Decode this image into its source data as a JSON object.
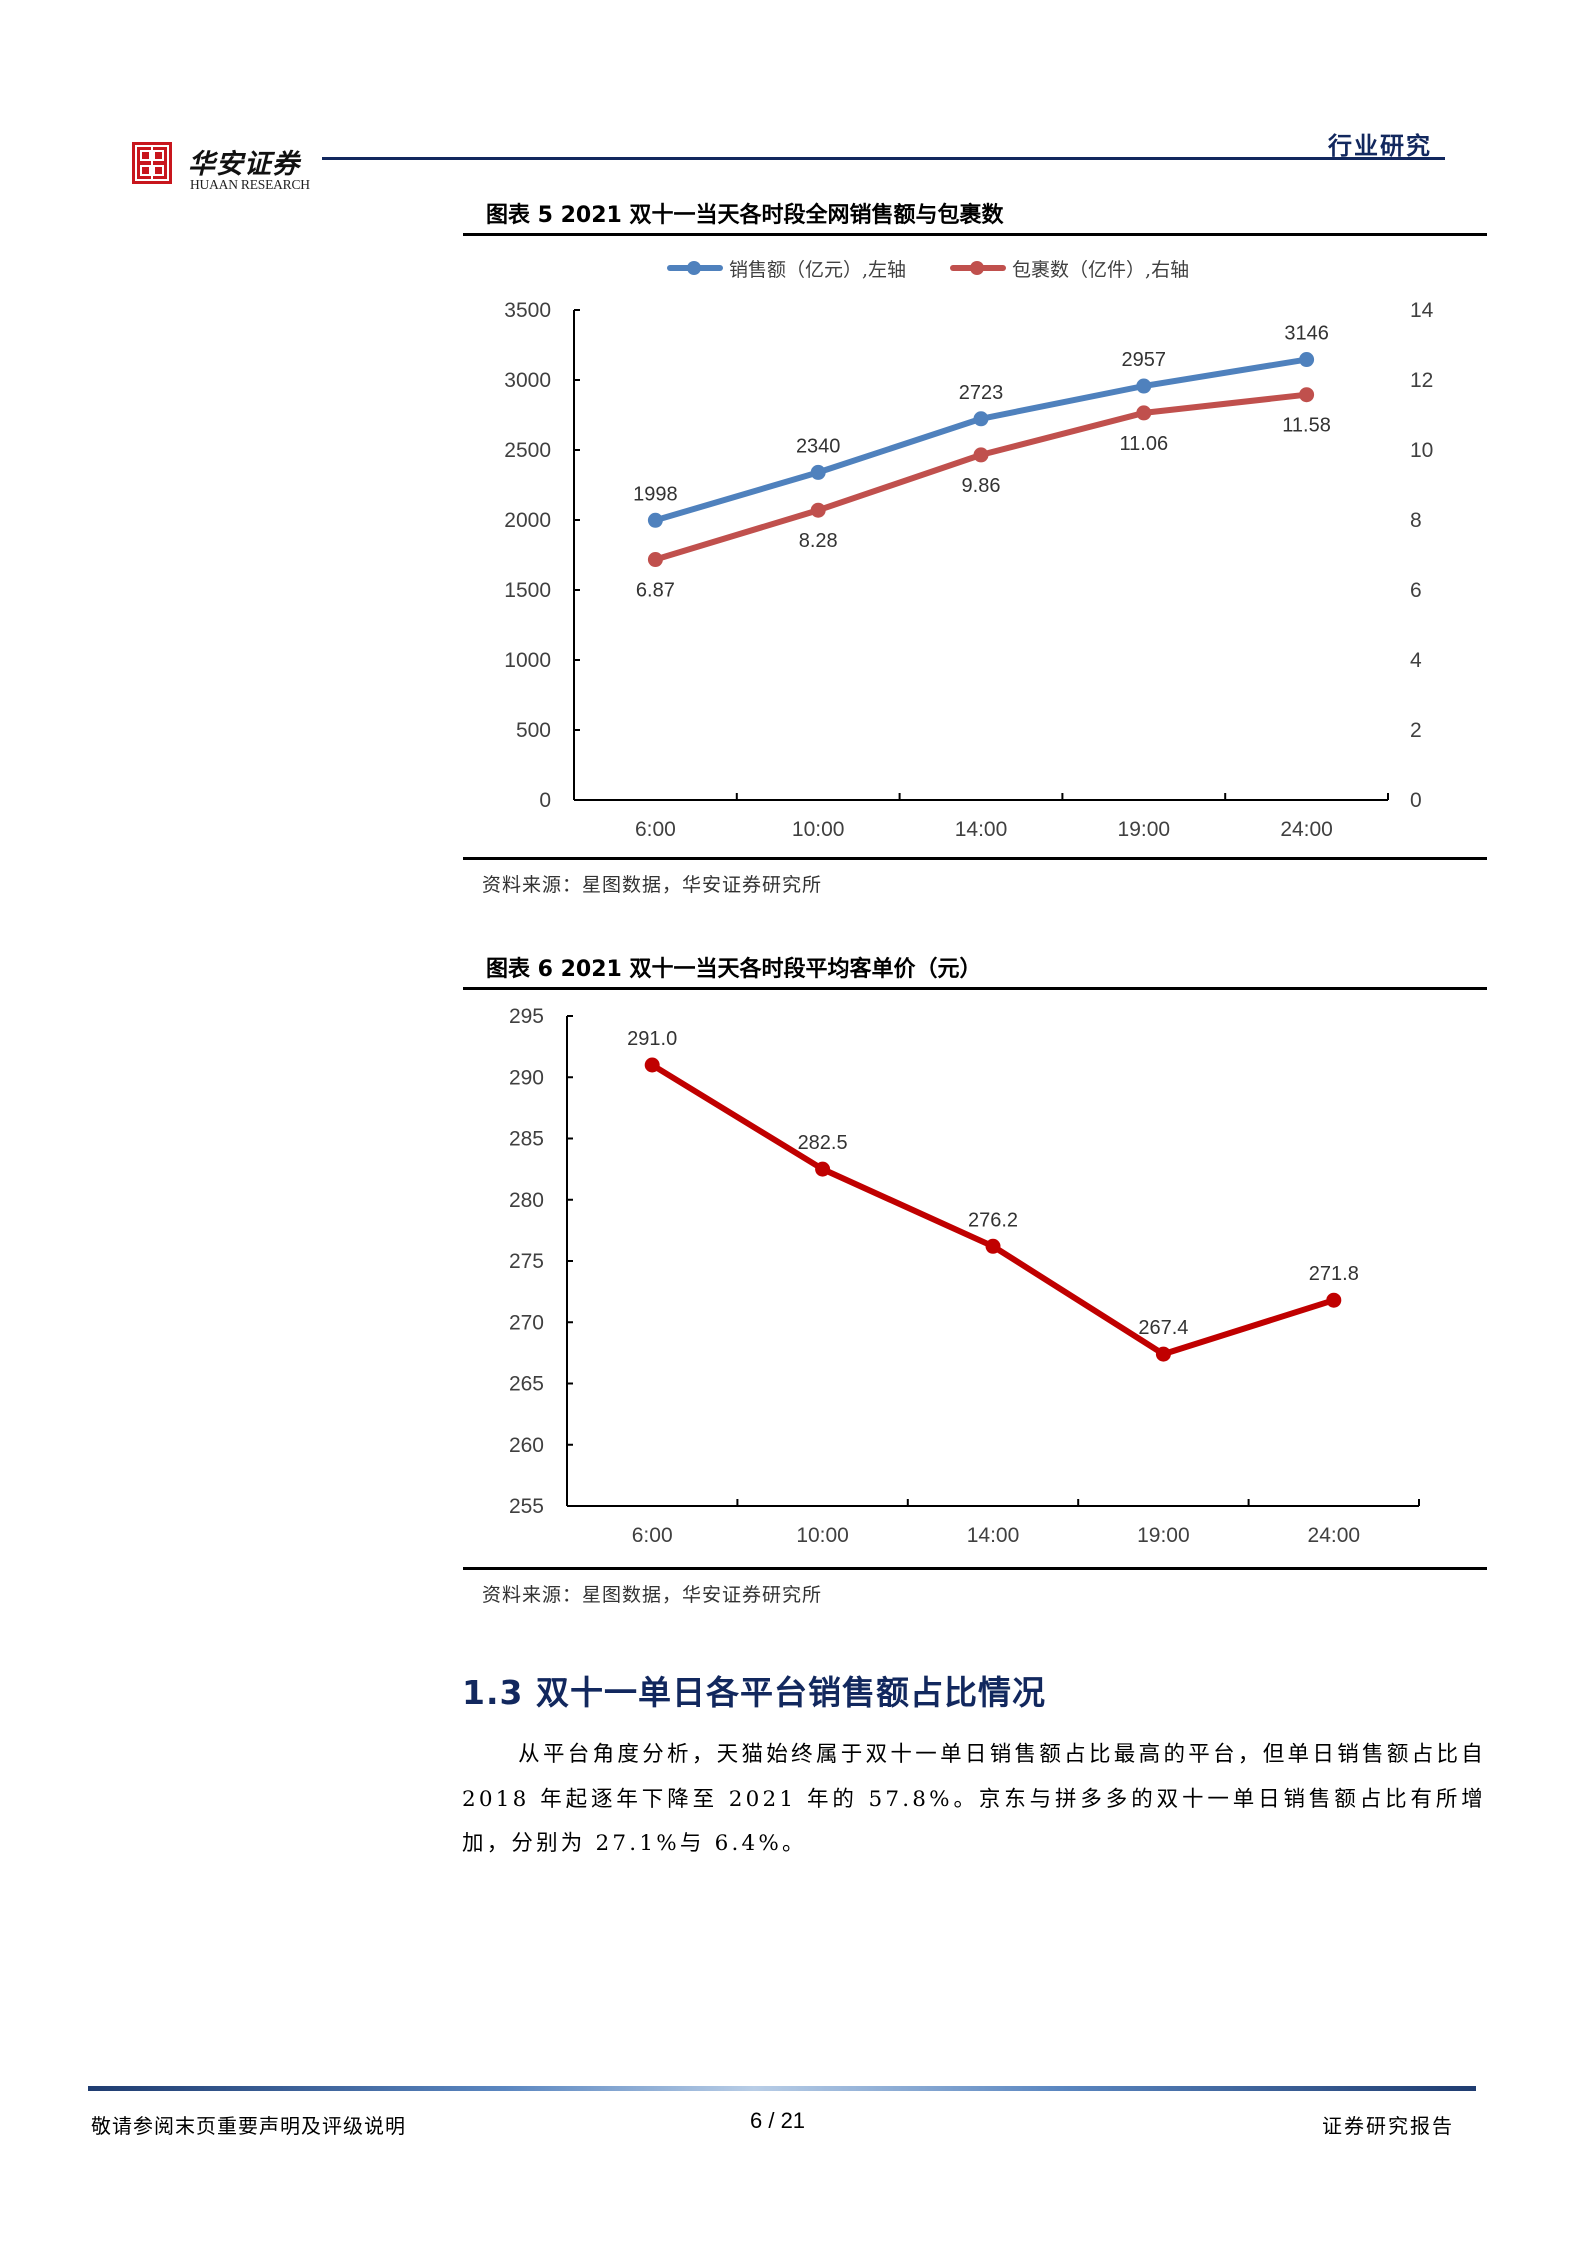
{
  "header": {
    "brand_cn": "华安证券",
    "brand_en": "HUAAN RESEARCH",
    "tag": "行业研究",
    "accent_color": "#12285e",
    "logo_color": "#c8161d"
  },
  "figure5": {
    "title": "图表 5 2021 双十一当天各时段全网销售额与包裹数",
    "source": "资料来源：星图数据，华安证券研究所"
  },
  "figure6": {
    "title": "图表 6 2021 双十一当天各时段平均客单价（元）",
    "source": "资料来源：星图数据，华安证券研究所"
  },
  "section": {
    "heading": "1.3 双十一单日各平台销售额占比情况",
    "paragraph": "从平台角度分析，天猫始终属于双十一单日销售额占比最高的平台，但单日销售额占比自 2018 年起逐年下降至 2021 年的 57.8%。京东与拼多多的双十一单日销售额占比有所增加，分别为 27.1%与 6.4%。"
  },
  "footer": {
    "disclaimer": "敬请参阅末页重要声明及评级说明",
    "page": "6 / 21",
    "doc_type": "证券研究报告"
  },
  "chart_data": [
    {
      "type": "line",
      "title": "图表 5 2021 双十一当天各时段全网销售额与包裹数",
      "categories": [
        "6:00",
        "10:00",
        "14:00",
        "19:00",
        "24:00"
      ],
      "series": [
        {
          "name": "销售额（亿元）,左轴",
          "axis": "left",
          "color": "#4f81bd",
          "values": [
            1998,
            2340,
            2723,
            2957,
            3146
          ],
          "labels": [
            "1998",
            "2340",
            "2723",
            "2957",
            "3146"
          ],
          "label_pos": "above"
        },
        {
          "name": "包裹数（亿件）,右轴",
          "axis": "right",
          "color": "#c0504d",
          "values": [
            6.87,
            8.28,
            9.86,
            11.06,
            11.58
          ],
          "labels": [
            "6.87",
            "8.28",
            "9.86",
            "11.06",
            "11.58"
          ],
          "label_pos": "below"
        }
      ],
      "ylim_left": [
        0,
        3500
      ],
      "yticks_left": [
        0,
        500,
        1000,
        1500,
        2000,
        2500,
        3000,
        3500
      ],
      "ylim_right": [
        0,
        14
      ],
      "yticks_right": [
        0,
        2,
        4,
        6,
        8,
        10,
        12,
        14
      ],
      "xlabel": "",
      "ylabel": "",
      "legend_position": "top",
      "grid": false
    },
    {
      "type": "line",
      "title": "图表 6 2021 双十一当天各时段平均客单价（元）",
      "categories": [
        "6:00",
        "10:00",
        "14:00",
        "19:00",
        "24:00"
      ],
      "series": [
        {
          "name": "平均客单价（元）",
          "color": "#c00000",
          "values": [
            291.0,
            282.5,
            276.2,
            267.4,
            271.8
          ],
          "labels": [
            "291.0",
            "282.5",
            "276.2",
            "267.4",
            "271.8"
          ],
          "label_pos": "above"
        }
      ],
      "ylim": [
        255,
        295
      ],
      "yticks": [
        255,
        260,
        265,
        270,
        275,
        280,
        285,
        290,
        295
      ],
      "xlabel": "",
      "ylabel": "",
      "grid": false
    }
  ]
}
